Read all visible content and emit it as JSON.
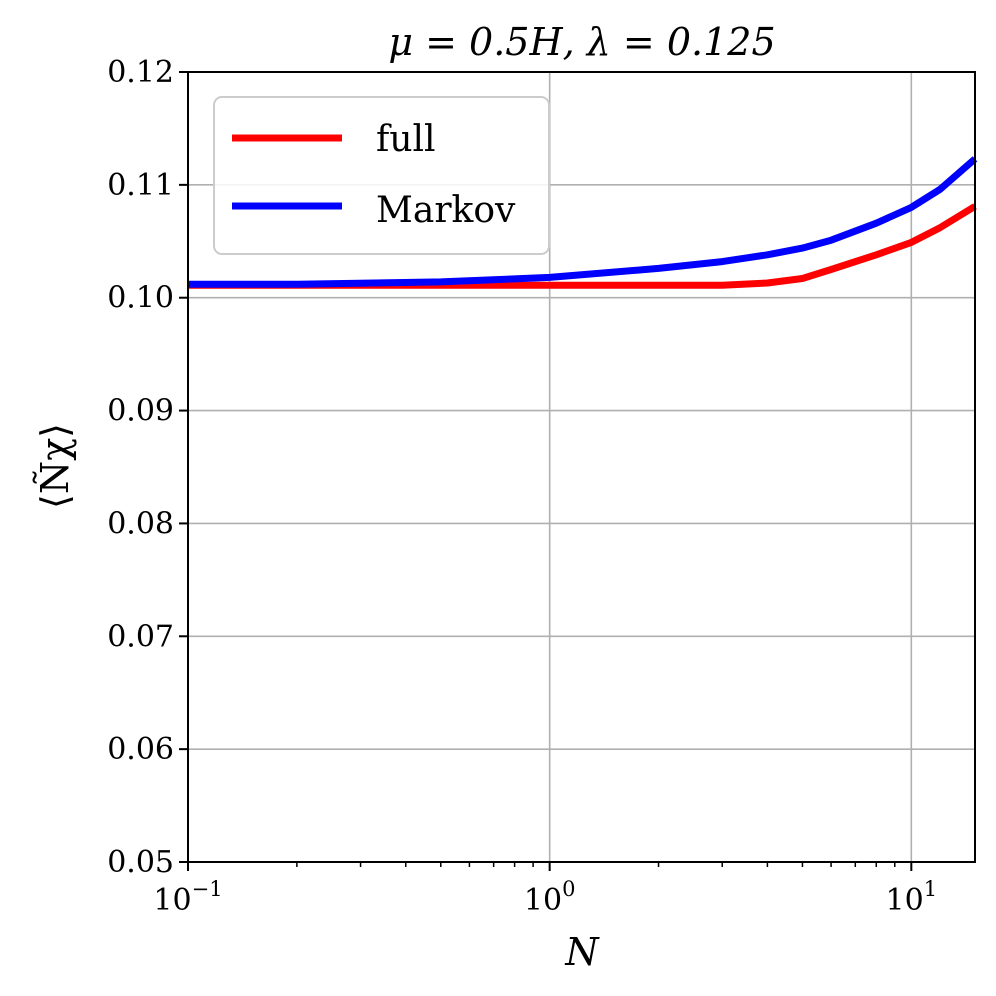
{
  "chart_data": {
    "type": "line",
    "title": "μ = 0.5H,  λ = 0.125",
    "xlabel": "N",
    "ylabel": "⟨Ñχ⟩",
    "x_scale": "log",
    "xlim": [
      0.1,
      15
    ],
    "ylim": [
      0.05,
      0.12
    ],
    "grid": true,
    "legend_position": "top-left",
    "x_ticks": [
      {
        "value": 0.1,
        "base": "10",
        "exp": "−1"
      },
      {
        "value": 1,
        "base": "10",
        "exp": "0"
      },
      {
        "value": 10,
        "base": "10",
        "exp": "1"
      }
    ],
    "y_ticks": [
      "0.05",
      "0.06",
      "0.07",
      "0.08",
      "0.09",
      "0.10",
      "0.11",
      "0.12"
    ],
    "series": [
      {
        "name": "full",
        "color": "#ff0000",
        "x": [
          0.1,
          0.2,
          0.5,
          1,
          2,
          3,
          4,
          5,
          6,
          8,
          10,
          12,
          15
        ],
        "y": [
          0.1011,
          0.1011,
          0.1011,
          0.1011,
          0.1011,
          0.1011,
          0.1013,
          0.1017,
          0.1025,
          0.1038,
          0.1049,
          0.1062,
          0.1081
        ]
      },
      {
        "name": "Markov",
        "color": "#0000ff",
        "x": [
          0.1,
          0.2,
          0.5,
          1,
          2,
          3,
          4,
          5,
          6,
          8,
          10,
          12,
          15
        ],
        "y": [
          0.1012,
          0.1012,
          0.1014,
          0.1018,
          0.1026,
          0.1032,
          0.1038,
          0.1044,
          0.1051,
          0.1066,
          0.108,
          0.1096,
          0.1123
        ]
      }
    ]
  }
}
